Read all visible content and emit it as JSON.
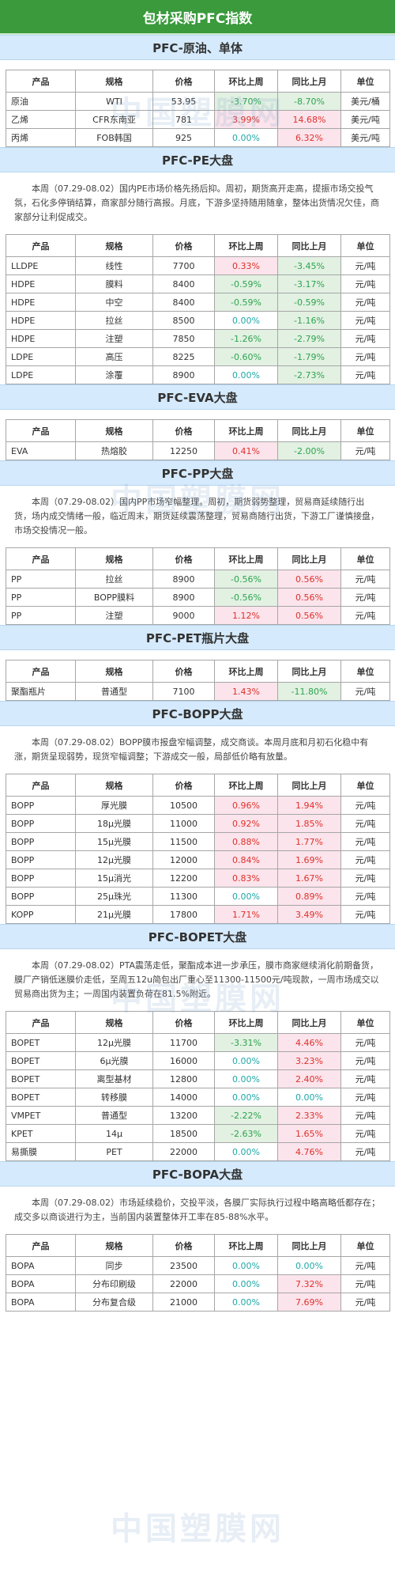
{
  "page_title": "包材采购PFC指数",
  "watermark": "中国塑膜网",
  "columns": {
    "prod": "产品",
    "spec": "规格",
    "price": "价格",
    "wow": "环比上周",
    "mom": "同比上月",
    "unit": "单位"
  },
  "sections": [
    {
      "title": "PFC-原油、单体",
      "desc": "",
      "rows": [
        {
          "prod": "原油",
          "spec": "WTI",
          "price": "53.95",
          "wow": "-3.70%",
          "mom": "-8.70%",
          "unit": "美元/桶"
        },
        {
          "prod": "乙烯",
          "spec": "CFR东南亚",
          "price": "781",
          "wow": "3.99%",
          "mom": "14.68%",
          "unit": "美元/吨"
        },
        {
          "prod": "丙烯",
          "spec": "FOB韩国",
          "price": "925",
          "wow": "0.00%",
          "mom": "6.32%",
          "unit": "美元/吨"
        }
      ]
    },
    {
      "title": "PFC-PE大盘",
      "desc": "本周（07.29-08.02）国内PE市场价格先扬后抑。周初，期货高开走高，提振市场交投气氛，石化多停销结算，商家部分随行高报。月底，下游多坚持随用随拿，整体出货情况欠佳，商家部分让利促成交。",
      "rows": [
        {
          "prod": "LLDPE",
          "spec": "线性",
          "price": "7700",
          "wow": "0.33%",
          "mom": "-3.45%",
          "unit": "元/吨"
        },
        {
          "prod": "HDPE",
          "spec": "膜料",
          "price": "8400",
          "wow": "-0.59%",
          "mom": "-3.17%",
          "unit": "元/吨"
        },
        {
          "prod": "HDPE",
          "spec": "中空",
          "price": "8400",
          "wow": "-0.59%",
          "mom": "-0.59%",
          "unit": "元/吨"
        },
        {
          "prod": "HDPE",
          "spec": "拉丝",
          "price": "8500",
          "wow": "0.00%",
          "mom": "-1.16%",
          "unit": "元/吨"
        },
        {
          "prod": "HDPE",
          "spec": "注塑",
          "price": "7850",
          "wow": "-1.26%",
          "mom": "-2.79%",
          "unit": "元/吨"
        },
        {
          "prod": "LDPE",
          "spec": "高压",
          "price": "8225",
          "wow": "-0.60%",
          "mom": "-1.79%",
          "unit": "元/吨"
        },
        {
          "prod": "LDPE",
          "spec": "涂覆",
          "price": "8900",
          "wow": "0.00%",
          "mom": "-2.73%",
          "unit": "元/吨"
        }
      ]
    },
    {
      "title": "PFC-EVA大盘",
      "desc": "",
      "rows": [
        {
          "prod": "EVA",
          "spec": "热熔胶",
          "price": "12250",
          "wow": "0.41%",
          "mom": "-2.00%",
          "unit": "元/吨"
        }
      ]
    },
    {
      "title": "PFC-PP大盘",
      "desc": "本周（07.29-08.02）国内PP市场窄幅整理。周初，期货弱势整理，贸易商延续随行出货，场内成交情绪一般，临近周末，期货延续震荡整理，贸易商随行出货，下游工厂谨慎接盘，市场交投情况一般。",
      "rows": [
        {
          "prod": "PP",
          "spec": "拉丝",
          "price": "8900",
          "wow": "-0.56%",
          "mom": "0.56%",
          "unit": "元/吨"
        },
        {
          "prod": "PP",
          "spec": "BOPP膜料",
          "price": "8900",
          "wow": "-0.56%",
          "mom": "0.56%",
          "unit": "元/吨"
        },
        {
          "prod": "PP",
          "spec": "注塑",
          "price": "9000",
          "wow": "1.12%",
          "mom": "0.56%",
          "unit": "元/吨"
        }
      ]
    },
    {
      "title": "PFC-PET瓶片大盘",
      "desc": "",
      "rows": [
        {
          "prod": "聚酯瓶片",
          "spec": "普通型",
          "price": "7100",
          "wow": "1.43%",
          "mom": "-11.80%",
          "unit": "元/吨"
        }
      ]
    },
    {
      "title": "PFC-BOPP大盘",
      "desc": "本周（07.29-08.02）BOPP膜市报盘窄幅调整，成交商谈。本周月底和月初石化稳中有涨，期货呈现弱势，现货窄幅调整；下游成交一般，局部低价略有放量。",
      "rows": [
        {
          "prod": "BOPP",
          "spec": "厚光膜",
          "price": "10500",
          "wow": "0.96%",
          "mom": "1.94%",
          "unit": "元/吨"
        },
        {
          "prod": "BOPP",
          "spec": "18μ光膜",
          "price": "11000",
          "wow": "0.92%",
          "mom": "1.85%",
          "unit": "元/吨"
        },
        {
          "prod": "BOPP",
          "spec": "15μ光膜",
          "price": "11500",
          "wow": "0.88%",
          "mom": "1.77%",
          "unit": "元/吨"
        },
        {
          "prod": "BOPP",
          "spec": "12μ光膜",
          "price": "12000",
          "wow": "0.84%",
          "mom": "1.69%",
          "unit": "元/吨"
        },
        {
          "prod": "BOPP",
          "spec": "15μ消光",
          "price": "12200",
          "wow": "0.83%",
          "mom": "1.67%",
          "unit": "元/吨"
        },
        {
          "prod": "BOPP",
          "spec": "25μ珠光",
          "price": "11300",
          "wow": "0.00%",
          "mom": "0.89%",
          "unit": "元/吨"
        },
        {
          "prod": "KOPP",
          "spec": "21μ光膜",
          "price": "17800",
          "wow": "1.71%",
          "mom": "3.49%",
          "unit": "元/吨"
        }
      ]
    },
    {
      "title": "PFC-BOPET大盘",
      "desc": "本周（07.29-08.02）PTA震荡走低，聚酯成本进一步承压，膜市商家继续消化前期备货，膜厂产销低迷膜价走低，至周五12u简包出厂重心至11300-11500元/吨现款，一周市场成交以贸易商出货为主；一周国内装置负荷在81.5%附近。",
      "rows": [
        {
          "prod": "BOPET",
          "spec": "12μ光膜",
          "price": "11700",
          "wow": "-3.31%",
          "mom": "4.46%",
          "unit": "元/吨"
        },
        {
          "prod": "BOPET",
          "spec": "6μ光膜",
          "price": "16000",
          "wow": "0.00%",
          "mom": "3.23%",
          "unit": "元/吨"
        },
        {
          "prod": "BOPET",
          "spec": "离型基材",
          "price": "12800",
          "wow": "0.00%",
          "mom": "2.40%",
          "unit": "元/吨"
        },
        {
          "prod": "BOPET",
          "spec": "转移膜",
          "price": "14000",
          "wow": "0.00%",
          "mom": "0.00%",
          "unit": "元/吨"
        },
        {
          "prod": "VMPET",
          "spec": "普通型",
          "price": "13200",
          "wow": "-2.22%",
          "mom": "2.33%",
          "unit": "元/吨"
        },
        {
          "prod": "KPET",
          "spec": "14μ",
          "price": "18500",
          "wow": "-2.63%",
          "mom": "1.65%",
          "unit": "元/吨"
        },
        {
          "prod": "易撕膜",
          "spec": "PET",
          "price": "22000",
          "wow": "0.00%",
          "mom": "4.76%",
          "unit": "元/吨"
        }
      ]
    },
    {
      "title": "PFC-BOPA大盘",
      "desc": "本周（07.29-08.02）市场延续稳价，交投平淡，各膜厂实际执行过程中略高略低都存在；成交多以商谈进行为主，当前国内装置整体开工率在85-88%水平。",
      "rows": [
        {
          "prod": "BOPA",
          "spec": "同步",
          "price": "23500",
          "wow": "0.00%",
          "mom": "0.00%",
          "unit": "元/吨"
        },
        {
          "prod": "BOPA",
          "spec": "分布印刷级",
          "price": "22000",
          "wow": "0.00%",
          "mom": "7.32%",
          "unit": "元/吨"
        },
        {
          "prod": "BOPA",
          "spec": "分布复合级",
          "price": "21000",
          "wow": "0.00%",
          "mom": "7.69%",
          "unit": "元/吨"
        }
      ]
    }
  ]
}
